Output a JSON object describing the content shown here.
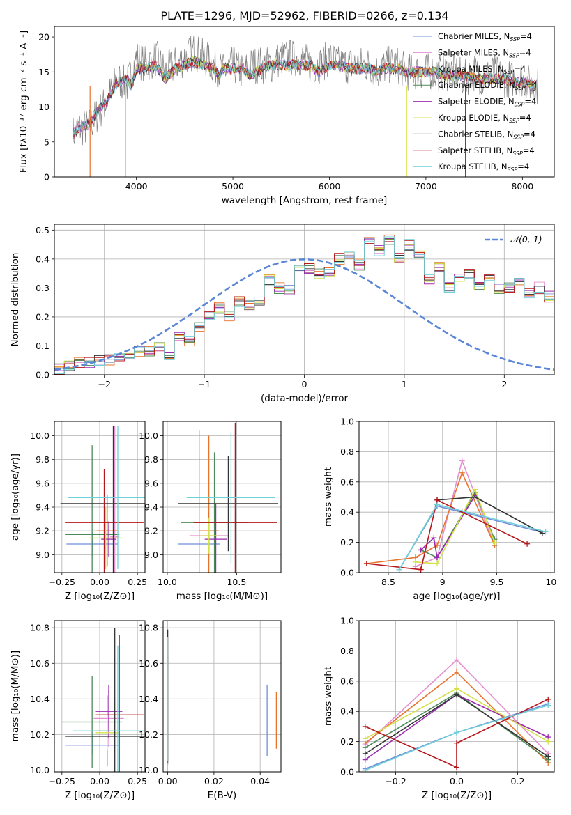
{
  "figure": {
    "title": "PLATE=1296, MJD=52962, FIBERID=0266, z=0.134"
  },
  "models": [
    {
      "name": "Chabrier MILES",
      "color": "#6f8fd8"
    },
    {
      "name": "Salpeter MILES",
      "color": "#e58fd0"
    },
    {
      "name": "Kroupa MILES",
      "color": "#e6742d"
    },
    {
      "name": "Chabrier ELODIE",
      "color": "#4d8a59"
    },
    {
      "name": "Salpeter ELODIE",
      "color": "#9b2bb0"
    },
    {
      "name": "Kroupa ELODIE",
      "color": "#d4e04a"
    },
    {
      "name": "Chabrier STELIB",
      "color": "#333333"
    },
    {
      "name": "Salpeter STELIB",
      "color": "#b5161b"
    },
    {
      "name": "Kroupa STELIB",
      "color": "#6fd0d8"
    }
  ],
  "legend_suffix_base": ", N",
  "legend_suffix_sub": "SSP",
  "legend_suffix_val": "=4",
  "chart_data": [
    {
      "id": "spectrum",
      "type": "line",
      "xlabel": "wavelength [Angstrom, rest frame]",
      "ylabel": "Flux [fλ10⁻¹⁷ erg cm⁻² s⁻¹ A⁻¹]",
      "xlim": [
        3150,
        8330
      ],
      "ylim": [
        0,
        21.5
      ],
      "xticks": [
        4000,
        5000,
        6000,
        7000,
        8000
      ],
      "yticks": [
        0,
        5,
        10,
        15,
        20
      ],
      "grid": false,
      "legend": "top-right",
      "observed_color": "#808080",
      "observed_envelope": [
        [
          3340,
          6
        ],
        [
          3400,
          7
        ],
        [
          3500,
          7
        ],
        [
          3600,
          9
        ],
        [
          3700,
          11
        ],
        [
          3800,
          14
        ],
        [
          3900,
          13
        ],
        [
          4000,
          17
        ],
        [
          4100,
          16
        ],
        [
          4200,
          17
        ],
        [
          4300,
          15
        ],
        [
          4400,
          16
        ],
        [
          4500,
          17
        ],
        [
          4600,
          18
        ],
        [
          4700,
          17
        ],
        [
          4800,
          16
        ],
        [
          4900,
          15
        ],
        [
          5000,
          16
        ],
        [
          5100,
          15
        ],
        [
          5200,
          16
        ],
        [
          5300,
          16
        ],
        [
          5400,
          16
        ],
        [
          5500,
          17
        ],
        [
          5600,
          17
        ],
        [
          5700,
          17
        ],
        [
          5800,
          16
        ],
        [
          5900,
          16
        ],
        [
          6000,
          17
        ],
        [
          6100,
          16
        ],
        [
          6200,
          16
        ],
        [
          6300,
          16
        ],
        [
          6400,
          16
        ],
        [
          6500,
          15
        ],
        [
          6600,
          16
        ],
        [
          6700,
          16
        ],
        [
          6800,
          15
        ],
        [
          6900,
          15
        ],
        [
          7000,
          15
        ],
        [
          7100,
          15
        ],
        [
          7200,
          15
        ],
        [
          7300,
          15
        ],
        [
          7400,
          14
        ],
        [
          7500,
          15
        ],
        [
          7600,
          14
        ],
        [
          7700,
          15
        ],
        [
          7800,
          14
        ],
        [
          7900,
          14
        ],
        [
          8000,
          14
        ],
        [
          8100,
          13
        ]
      ],
      "model_envelope": [
        [
          3340,
          6
        ],
        [
          3400,
          7
        ],
        [
          3500,
          7.5
        ],
        [
          3600,
          9.5
        ],
        [
          3700,
          11
        ],
        [
          3800,
          13.5
        ],
        [
          3900,
          14
        ],
        [
          3950,
          13
        ],
        [
          4000,
          15.5
        ],
        [
          4100,
          15.5
        ],
        [
          4200,
          16
        ],
        [
          4300,
          14
        ],
        [
          4400,
          15.5
        ],
        [
          4500,
          16
        ],
        [
          4600,
          16.5
        ],
        [
          4700,
          16
        ],
        [
          4800,
          15.5
        ],
        [
          4860,
          14.5
        ],
        [
          4900,
          15.5
        ],
        [
          5000,
          15.5
        ],
        [
          5100,
          15.5
        ],
        [
          5175,
          14.5
        ],
        [
          5300,
          15.5
        ],
        [
          5400,
          16
        ],
        [
          5500,
          16
        ],
        [
          5600,
          16
        ],
        [
          5700,
          16
        ],
        [
          5800,
          16
        ],
        [
          5890,
          15
        ],
        [
          6000,
          16
        ],
        [
          6100,
          16
        ],
        [
          6200,
          15.5
        ],
        [
          6300,
          15.5
        ],
        [
          6400,
          15.5
        ],
        [
          6500,
          15
        ],
        [
          6563,
          15.5
        ],
        [
          6700,
          15.5
        ],
        [
          6800,
          15
        ],
        [
          6900,
          15
        ],
        [
          7000,
          15
        ],
        [
          7100,
          15
        ],
        [
          7200,
          14.5
        ],
        [
          7300,
          14.5
        ],
        [
          7400,
          14.5
        ],
        [
          7500,
          14
        ],
        [
          7600,
          14
        ],
        [
          7700,
          14
        ],
        [
          7800,
          14
        ],
        [
          7900,
          13.5
        ],
        [
          8000,
          13.5
        ],
        [
          8100,
          13
        ]
      ]
    },
    {
      "id": "residuals",
      "type": "bar",
      "xlabel": "(data-model)/error",
      "ylabel": "Normed distribution",
      "xlim": [
        -2.5,
        2.5
      ],
      "ylim": [
        0,
        0.52
      ],
      "xticks": [
        -2,
        -1,
        0,
        1,
        2
      ],
      "yticks": [
        0.0,
        0.1,
        0.2,
        0.3,
        0.4,
        0.5
      ],
      "grid": true,
      "legend": "top-right",
      "legend_label": "𝒩(0, 1)",
      "bin_width": 0.1,
      "bin_start": -2.5,
      "values": [
        0.02,
        0.03,
        0.04,
        0.04,
        0.05,
        0.05,
        0.06,
        0.07,
        0.08,
        0.08,
        0.1,
        0.07,
        0.13,
        0.12,
        0.17,
        0.2,
        0.23,
        0.2,
        0.25,
        0.24,
        0.26,
        0.33,
        0.3,
        0.29,
        0.36,
        0.37,
        0.35,
        0.36,
        0.4,
        0.41,
        0.38,
        0.46,
        0.43,
        0.47,
        0.4,
        0.45,
        0.42,
        0.33,
        0.37,
        0.3,
        0.34,
        0.35,
        0.31,
        0.33,
        0.3,
        0.3,
        0.32,
        0.28,
        0.3,
        0.27,
        0.24,
        0.22,
        0.2,
        0.2,
        0.18,
        0.15,
        0.16,
        0.14,
        0.13,
        0.11,
        0.12,
        0.1,
        0.09,
        0.07,
        0.08,
        0.08,
        0.07,
        0.05,
        0.05,
        0.04,
        0.04,
        0.04,
        0.03,
        0.03,
        0.03,
        0.02,
        0.03
      ]
    },
    {
      "id": "z-age",
      "type": "scatter",
      "xlabel": "Z [log₁₀(Z/Z⊙)]",
      "ylabel": "age  [log₁₀(age/yr)]",
      "xlim": [
        -0.3,
        0.3
      ],
      "ylim": [
        8.85,
        10.12
      ],
      "xticks": [
        -0.25,
        0.0,
        0.25
      ],
      "xticklabels": [
        "−0.25",
        "0.00",
        "0.25"
      ],
      "yticks": [
        9.0,
        9.2,
        9.4,
        9.6,
        9.8,
        10.0
      ],
      "grid": true,
      "points": [
        {
          "x": -0.05,
          "xerr": 0.17,
          "y": 9.09,
          "yerr": 0.1
        },
        {
          "x": 0.1,
          "xerr": 0.03,
          "y": 9.15,
          "yerr": 0.93
        },
        {
          "x": 0.05,
          "xerr": 0.07,
          "y": 9.2,
          "yerr": 0.3
        },
        {
          "x": -0.05,
          "xerr": 0.18,
          "y": 9.17,
          "yerr": 0.75
        },
        {
          "x": 0.06,
          "xerr": 0.05,
          "y": 9.13,
          "yerr": 0.15
        },
        {
          "x": 0.04,
          "xerr": 0.11,
          "y": 9.14,
          "yerr": 0.26
        },
        {
          "x": 0.09,
          "xerr": 0.35,
          "y": 9.43,
          "yerr": 0.65
        },
        {
          "x": 0.03,
          "xerr": 0.26,
          "y": 9.27,
          "yerr": 0.45
        },
        {
          "x": 0.12,
          "xerr": 0.33,
          "y": 9.48,
          "yerr": 0.6
        }
      ]
    },
    {
      "id": "mass-age",
      "type": "scatter",
      "xlabel": "mass [log₁₀(M/M⊙)]",
      "ylabel": "",
      "xlim": [
        9.97,
        10.82
      ],
      "ylim": [
        8.85,
        10.12
      ],
      "xticks": [
        10.0,
        10.5
      ],
      "xticklabels": [
        "10.0",
        "10.5"
      ],
      "yticks": [
        9.0,
        9.2,
        9.4,
        9.6,
        9.8,
        10.0
      ],
      "grid": true,
      "points": [
        {
          "x": 10.23,
          "xerr": 0.15,
          "y": 9.09,
          "yerr": 0.96
        },
        {
          "x": 10.3,
          "xerr": 0.14,
          "y": 9.16,
          "yerr": 0.15
        },
        {
          "x": 10.3,
          "xerr": 0.07,
          "y": 9.2,
          "yerr": 0.8
        },
        {
          "x": 10.34,
          "xerr": 0.24,
          "y": 9.27,
          "yerr": 0.59
        },
        {
          "x": 10.35,
          "xerr": 0.08,
          "y": 9.13,
          "yerr": 0.3
        },
        {
          "x": 10.3,
          "xerr": 0.06,
          "y": 9.16,
          "yerr": 0.15
        },
        {
          "x": 10.44,
          "xerr": 0.36,
          "y": 9.43,
          "yerr": 0.4
        },
        {
          "x": 10.49,
          "xerr": 0.3,
          "y": 9.27,
          "yerr": 0.84
        },
        {
          "x": 10.46,
          "xerr": 0.32,
          "y": 9.48,
          "yerr": 0.55
        }
      ]
    },
    {
      "id": "age-weight",
      "type": "line",
      "xlabel": "age  [log₁₀(age/yr)]",
      "ylabel": "mass weight",
      "xlim": [
        8.23,
        10.03
      ],
      "ylim": [
        0,
        1
      ],
      "xticks": [
        8.5,
        9.0,
        9.5,
        10.0
      ],
      "yticks": [
        0.0,
        0.2,
        0.4,
        0.6,
        0.8,
        1.0
      ],
      "grid": true,
      "series": [
        {
          "x": [
            8.6,
            8.95,
            9.18,
            9.9
          ],
          "y": [
            0.02,
            0.44,
            0.4,
            0.27
          ]
        },
        {
          "x": [
            8.75,
            8.95,
            9.18,
            9.48
          ],
          "y": [
            0.04,
            0.1,
            0.74,
            0.18
          ]
        },
        {
          "x": [
            8.3,
            8.75,
            8.95,
            9.18,
            9.48
          ],
          "y": [
            0.06,
            0.1,
            0.18,
            0.66,
            0.18
          ]
        },
        {
          "x": [
            8.8,
            8.95,
            9.3,
            9.48
          ],
          "y": [
            0.15,
            0.1,
            0.53,
            0.22
          ]
        },
        {
          "x": [
            8.8,
            8.92,
            8.95,
            9.3
          ],
          "y": [
            0.15,
            0.23,
            0.1,
            0.51
          ]
        },
        {
          "x": [
            8.75,
            8.95,
            9.3,
            9.48
          ],
          "y": [
            0.07,
            0.06,
            0.55,
            0.2
          ]
        },
        {
          "x": [
            8.95,
            9.3,
            9.92
          ],
          "y": [
            0.48,
            0.5,
            0.26
          ]
        },
        {
          "x": [
            8.3,
            8.8,
            8.95,
            9.78
          ],
          "y": [
            0.06,
            0.02,
            0.48,
            0.19
          ]
        },
        {
          "x": [
            8.6,
            8.95,
            9.95
          ],
          "y": [
            0.02,
            0.45,
            0.27
          ]
        }
      ]
    },
    {
      "id": "z-mass",
      "type": "scatter",
      "xlabel": "Z [log₁₀(Z/Z⊙)]",
      "ylabel": "mass [log₁₀(M/M⊙)]",
      "xlim": [
        -0.3,
        0.3
      ],
      "ylim": [
        9.99,
        10.84
      ],
      "xticks": [
        -0.25,
        0.0,
        0.25
      ],
      "xticklabels": [
        "−0.25",
        "0.00",
        "0.25"
      ],
      "yticks": [
        10.0,
        10.2,
        10.4,
        10.6,
        10.8
      ],
      "grid": true,
      "points": [
        {
          "x": -0.05,
          "xerr": 0.18,
          "y": 10.14,
          "yerr": 0.05
        },
        {
          "x": 0.06,
          "xerr": 0.1,
          "y": 10.29,
          "yerr": 0.16
        },
        {
          "x": 0.05,
          "xerr": 0.08,
          "y": 10.22,
          "yerr": 0.2
        },
        {
          "x": -0.05,
          "xerr": 0.2,
          "y": 10.27,
          "yerr": 0.26
        },
        {
          "x": 0.06,
          "xerr": 0.09,
          "y": 10.33,
          "yerr": 0.15
        },
        {
          "x": 0.05,
          "xerr": 0.08,
          "y": 10.21,
          "yerr": 0.1
        },
        {
          "x": 0.1,
          "xerr": 0.33,
          "y": 10.19,
          "yerr": 0.61
        },
        {
          "x": 0.13,
          "xerr": 0.16,
          "y": 10.31,
          "yerr": 0.45
        },
        {
          "x": 0.12,
          "xerr": 0.3,
          "y": 10.22,
          "yerr": 0.48
        }
      ]
    },
    {
      "id": "ebv-mass",
      "type": "scatter",
      "xlabel": "E(B-V)",
      "ylabel": "",
      "xlim": [
        -0.002,
        0.049
      ],
      "ylim": [
        9.99,
        10.84
      ],
      "xticks": [
        0.0,
        0.02,
        0.04
      ],
      "xticklabels": [
        "0.00",
        "0.02",
        "0.04"
      ],
      "yticks": [
        10.0,
        10.2,
        10.4,
        10.6,
        10.8
      ],
      "grid": true,
      "points": [
        {
          "x": 0.043,
          "xerr": 0,
          "y": 10.28,
          "yerr": 0.2
        },
        {
          "x": 0.0,
          "xerr": 0,
          "y": 10.33,
          "yerr": 0.3
        },
        {
          "x": 0.047,
          "xerr": 0,
          "y": 10.28,
          "yerr": 0.16
        },
        {
          "x": 0.0,
          "xerr": 0,
          "y": 10.34,
          "yerr": 0.3
        },
        {
          "x": 0.0,
          "xerr": 0,
          "y": 10.35,
          "yerr": 0.3
        },
        {
          "x": 0.0,
          "xerr": 0,
          "y": 10.35,
          "yerr": 0.3
        },
        {
          "x": 0.0,
          "xerr": 0,
          "y": 10.42,
          "yerr": 0.37
        },
        {
          "x": 0.0,
          "xerr": 0,
          "y": 10.4,
          "yerr": 0.35
        },
        {
          "x": 0.0,
          "xerr": 0,
          "y": 10.4,
          "yerr": 0.35
        }
      ]
    },
    {
      "id": "z-weight",
      "type": "line",
      "xlabel": "Z [log₁₀(Z/Z⊙)]",
      "ylabel": "mass weight",
      "xlim": [
        -0.32,
        0.32
      ],
      "ylim": [
        0,
        1
      ],
      "xticks": [
        -0.2,
        0.0,
        0.2
      ],
      "xticklabels": [
        "−0.2",
        "0.0",
        "0.2"
      ],
      "yticks": [
        0.0,
        0.2,
        0.4,
        0.6,
        0.8,
        1.0
      ],
      "grid": true,
      "series": [
        {
          "x": [
            -0.3,
            0.0,
            0.3
          ],
          "y": [
            0.02,
            0.26,
            0.45
          ]
        },
        {
          "x": [
            -0.3,
            0.0,
            0.3
          ],
          "y": [
            0.18,
            0.74,
            0.12
          ]
        },
        {
          "x": [
            -0.3,
            0.0,
            0.3
          ],
          "y": [
            0.19,
            0.66,
            0.06
          ]
        },
        {
          "x": [
            -0.3,
            0.0,
            0.3
          ],
          "y": [
            0.16,
            0.52,
            0.08
          ]
        },
        {
          "x": [
            -0.3,
            0.0,
            0.3
          ],
          "y": [
            0.08,
            0.51,
            0.23
          ]
        },
        {
          "x": [
            -0.3,
            0.0,
            0.3
          ],
          "y": [
            0.22,
            0.55,
            0.2
          ]
        },
        {
          "x": [
            -0.3,
            0.0,
            0.3
          ],
          "y": [
            0.12,
            0.51,
            0.1
          ]
        },
        {
          "x": [
            -0.3,
            0.0,
            0.0,
            0.3
          ],
          "y": [
            0.3,
            0.03,
            0.19,
            0.48
          ]
        },
        {
          "x": [
            -0.3,
            0.0,
            0.3
          ],
          "y": [
            0.01,
            0.26,
            0.44
          ]
        }
      ]
    }
  ]
}
